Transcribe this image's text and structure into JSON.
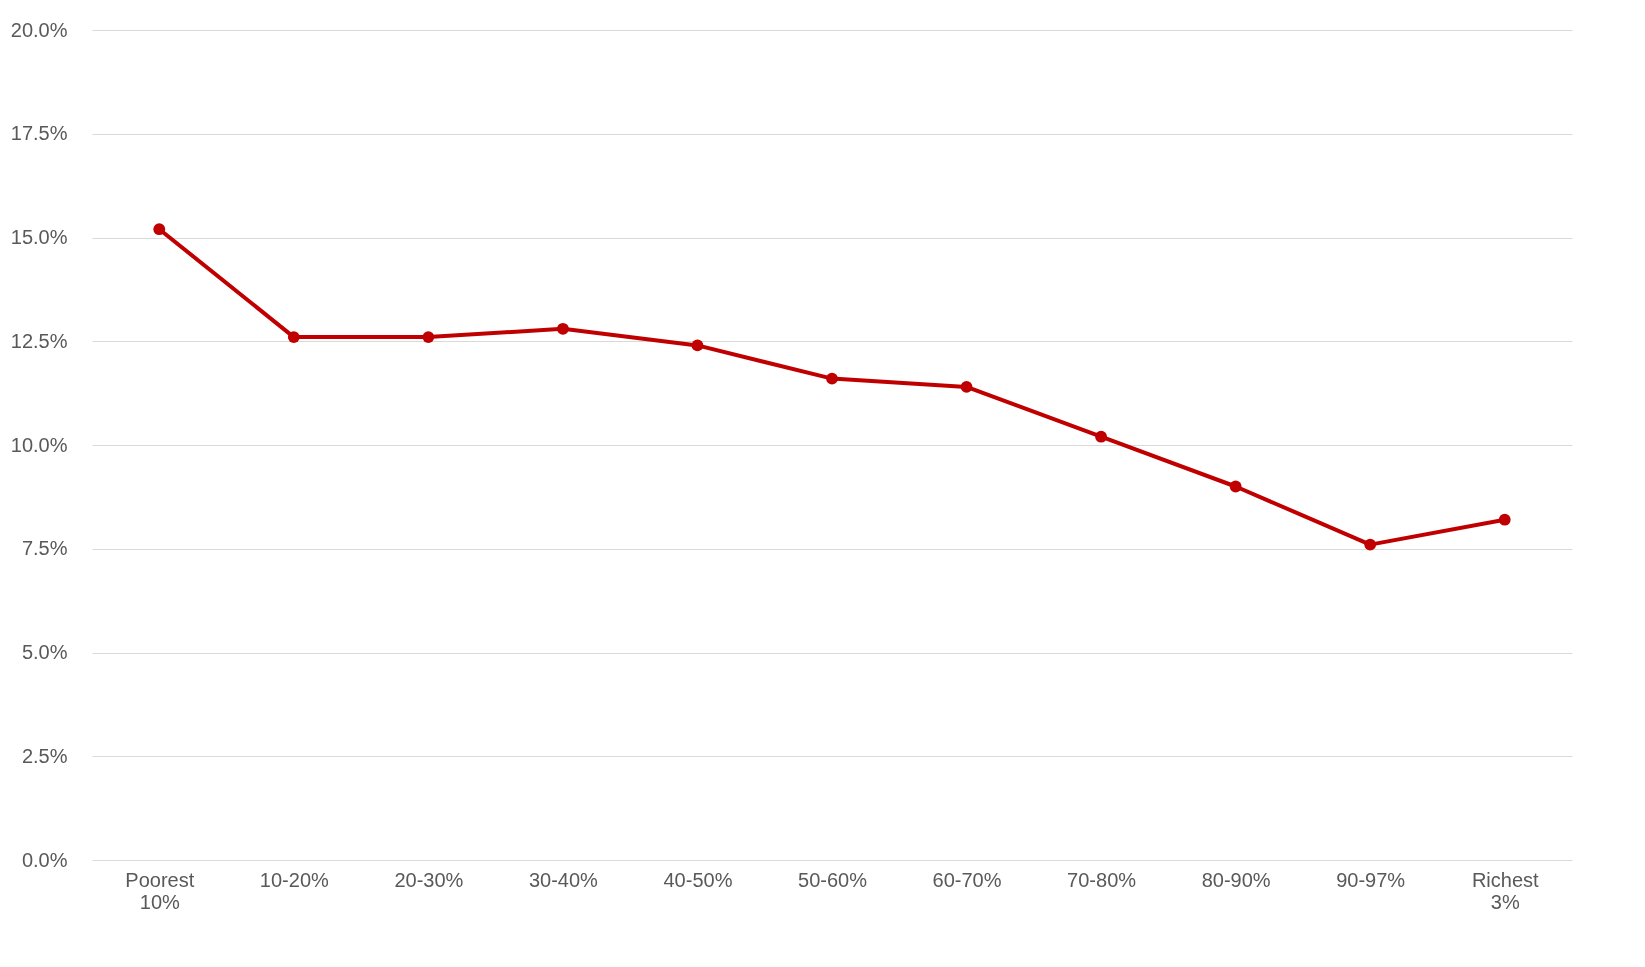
{
  "chart_data": {
    "type": "line",
    "categories": [
      "Poorest 10%",
      "10-20%",
      "20-30%",
      "30-40%",
      "40-50%",
      "50-60%",
      "60-70%",
      "70-80%",
      "80-90%",
      "90-97%",
      "Richest 3%"
    ],
    "series": [
      {
        "color": "#c00000",
        "values": [
          15.2,
          12.6,
          12.6,
          12.8,
          12.4,
          11.6,
          11.4,
          10.2,
          9.0,
          7.6,
          8.2
        ]
      }
    ],
    "ylim": [
      0,
      20
    ],
    "yticks": [
      {
        "value": 0,
        "label": "0.0%"
      },
      {
        "value": 2.5,
        "label": "2.5%"
      },
      {
        "value": 5,
        "label": "5.0%"
      },
      {
        "value": 7.5,
        "label": "7.5%"
      },
      {
        "value": 10,
        "label": "10.0%"
      },
      {
        "value": 12.5,
        "label": "12.5%"
      },
      {
        "value": 15,
        "label": "15.0%"
      },
      {
        "value": 17.5,
        "label": "17.5%"
      },
      {
        "value": 20,
        "label": "20.0%"
      }
    ],
    "grid": "y",
    "marker": "circle",
    "line_style": "solid"
  }
}
